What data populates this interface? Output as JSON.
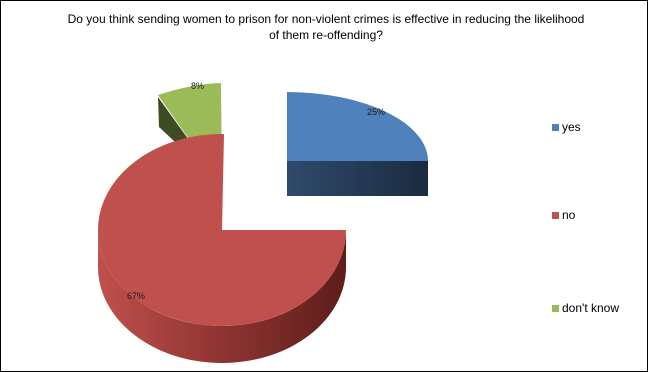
{
  "chart_data": {
    "type": "pie",
    "title": "Do you think sending women to prison for non-violent crimes is effective in reducing the likelihood of them re-offending?",
    "exploded": true,
    "three_d": true,
    "legend_position": "right",
    "slices": [
      {
        "name": "yes",
        "value": 25,
        "label": "25%",
        "color": "#4f81bd"
      },
      {
        "name": "no",
        "value": 67,
        "label": "67%",
        "color": "#c0504d"
      },
      {
        "name": "don't know",
        "value": 8,
        "label": "8%",
        "color": "#9bbb59"
      }
    ]
  }
}
